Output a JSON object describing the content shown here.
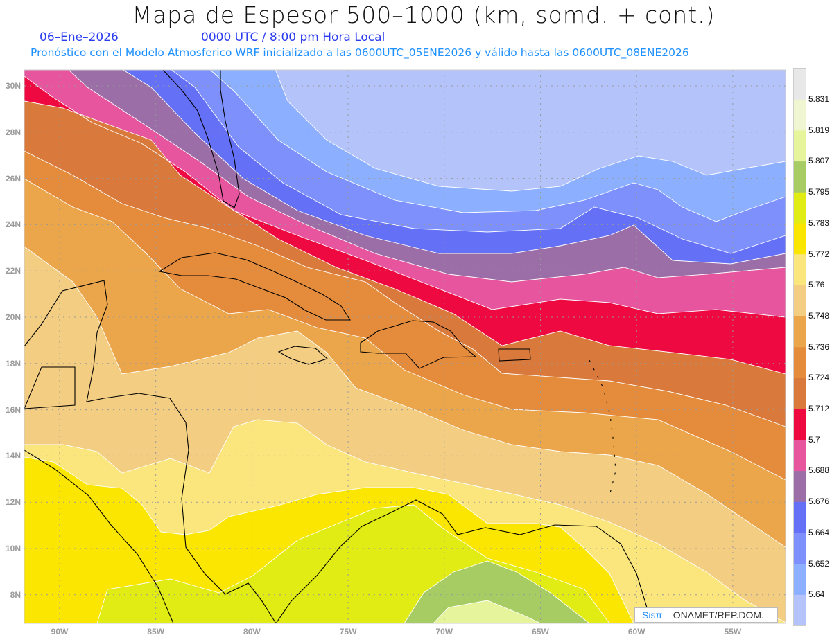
{
  "header": {
    "title": "Mapa de Espesor 500–1000 (km, somd. + cont.)",
    "date": "06–Ene–2026",
    "time": "0000 UTC / 8:00 pm Hora Local",
    "subtitle": "Pronóstico con el Modelo Atmosferico WRF inicializado a las 0600UTC_05ENE2026 y válido hasta las  0600UTC_08ENE2026"
  },
  "axes": {
    "lat_labels": [
      "30N",
      "28N",
      "26N",
      "24N",
      "22N",
      "20N",
      "18N",
      "16N",
      "14N",
      "12N",
      "10N",
      "8N"
    ],
    "lon_labels": [
      "90W",
      "85W",
      "80W",
      "75W",
      "70W",
      "65W",
      "60W",
      "55W"
    ]
  },
  "colorbar": {
    "labels": [
      "5.831",
      "5.819",
      "5.807",
      "5.795",
      "5.783",
      "5.772",
      "5.76",
      "5.748",
      "5.736",
      "5.724",
      "5.712",
      "5.7",
      "5.688",
      "5.676",
      "5.664",
      "5.652",
      "5.64"
    ],
    "colors": [
      "#e8e8e8",
      "#f0f5d2",
      "#e6f59b",
      "#a8cc64",
      "#e1eb14",
      "#fae600",
      "#fbe67d",
      "#f2cd82",
      "#eba54b",
      "#e48c3c",
      "#d97a3c",
      "#ee0a40",
      "#e6559e",
      "#9b6ea8",
      "#6470f5",
      "#7d90fb",
      "#8cb0ff",
      "#b4c4fb"
    ]
  },
  "credit": {
    "logo": "Sisπ",
    "text": "– ONAMET/REP.DOM."
  }
}
